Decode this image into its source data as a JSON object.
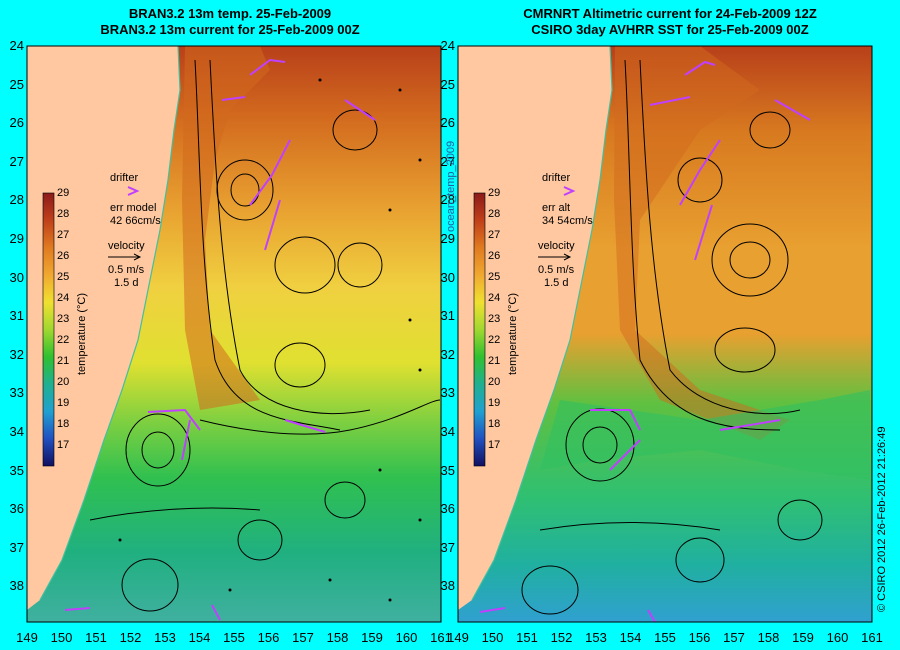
{
  "panels": [
    {
      "title_line1": "BRAN3.2 13m temp. 25-Feb-2009",
      "title_line2": "BRAN3.2 13m current for 25-Feb-2009 00Z",
      "legend": {
        "drifter": "drifter",
        "err_label": "err model",
        "err_value": "42 66cm/s",
        "velocity": "velocity",
        "scale": "0.5 m/s",
        "duration": "1.5 d"
      }
    },
    {
      "title_line1": "CMRNRT Altimetric current for 24-Feb-2009 12Z",
      "title_line2": "CSIRO 3day AVHRR SST for 25-Feb-2009 00Z",
      "legend": {
        "drifter": "drifter",
        "err_label": "err alt",
        "err_value": "34 54cm/s",
        "velocity": "velocity",
        "scale": "0.5 m/s",
        "duration": "1.5 d"
      }
    }
  ],
  "latitudes": [
    "24",
    "25",
    "26",
    "27",
    "28",
    "29",
    "30",
    "31",
    "32",
    "33",
    "34",
    "35",
    "36",
    "37",
    "38"
  ],
  "longitudes": [
    "149",
    "150",
    "151",
    "152",
    "153",
    "154",
    "155",
    "156",
    "157",
    "158",
    "159",
    "160",
    "161"
  ],
  "colorbar": {
    "label": "temperature (°C)",
    "ticks": [
      "29",
      "28",
      "27",
      "26",
      "25",
      "24",
      "23",
      "22",
      "21",
      "20",
      "19",
      "18",
      "17"
    ],
    "colors": [
      "#8b1a1a",
      "#b8401a",
      "#d2691e",
      "#e8a030",
      "#f0c040",
      "#f0e030",
      "#c0e030",
      "#40c020",
      "#20b080",
      "#20a0c0",
      "#2070d0",
      "#2040a0",
      "#101060"
    ]
  },
  "vertical_label": "ocean_temp_2009",
  "copyright": "© CSIRO 2012  26-Feb-2012 21:26:49",
  "colors": {
    "background": "#00ffff",
    "land": "#ffc8a0",
    "drifter": "#c040ff",
    "coast": "#40c0a0"
  }
}
